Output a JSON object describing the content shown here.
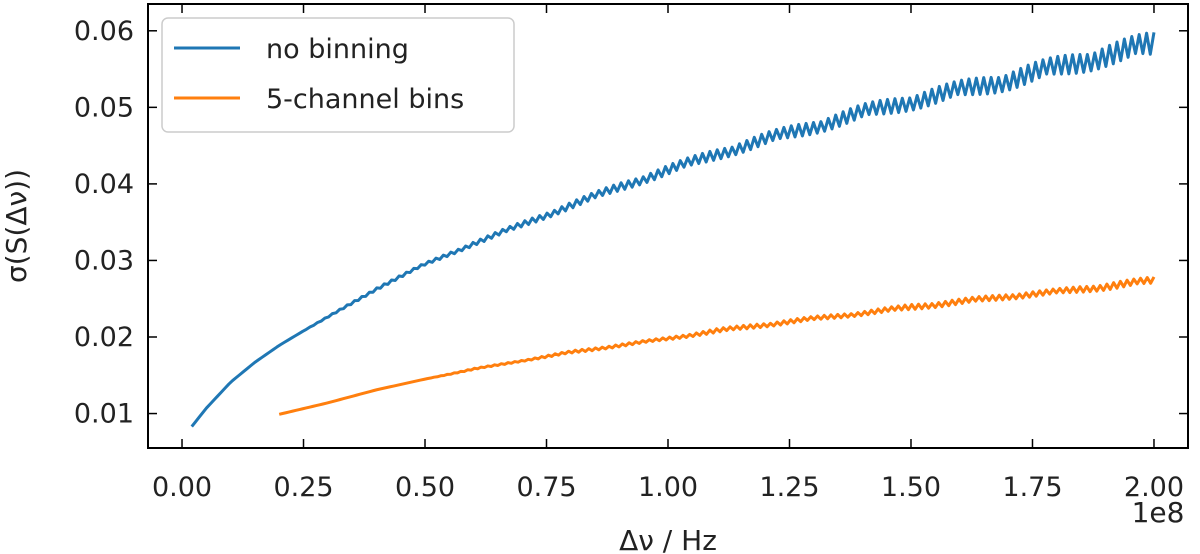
{
  "chart_data": {
    "type": "line",
    "title": "",
    "xlabel": "Δν / Hz",
    "ylabel": "σ(S(Δν))",
    "x_offset_label": "1e8",
    "xlim": [
      -0.07,
      2.07
    ],
    "ylim": [
      0.0055,
      0.0635
    ],
    "xticks": [
      0.0,
      0.25,
      0.5,
      0.75,
      1.0,
      1.25,
      1.5,
      1.75,
      2.0
    ],
    "xtick_labels": [
      "0.00",
      "0.25",
      "0.50",
      "0.75",
      "1.00",
      "1.25",
      "1.50",
      "1.75",
      "2.00"
    ],
    "yticks": [
      0.01,
      0.02,
      0.03,
      0.04,
      0.05,
      0.06
    ],
    "ytick_labels": [
      "0.01",
      "0.02",
      "0.03",
      "0.04",
      "0.05",
      "0.06"
    ],
    "grid": false,
    "legend_position": "top-left",
    "series": [
      {
        "name": "no binning",
        "color": "#1f77b4",
        "x": [
          0.02,
          0.05,
          0.1,
          0.15,
          0.2,
          0.25,
          0.3,
          0.4,
          0.5,
          0.6,
          0.7,
          0.8,
          0.9,
          1.0,
          1.1,
          1.2,
          1.3,
          1.4,
          1.5,
          1.6,
          1.7,
          1.8,
          1.9,
          2.0
        ],
        "y": [
          0.0083,
          0.0107,
          0.0141,
          0.0167,
          0.0189,
          0.0208,
          0.0226,
          0.0263,
          0.0295,
          0.0322,
          0.0347,
          0.0372,
          0.0396,
          0.0418,
          0.0439,
          0.0458,
          0.0475,
          0.0493,
          0.0508,
          0.0522,
          0.0536,
          0.0552,
          0.0568,
          0.0582
        ],
        "noise_band": [
          0.0,
          0.0,
          0.0,
          0.0,
          0.0,
          0.0,
          0.0001,
          0.0002,
          0.0002,
          0.0003,
          0.0004,
          0.0005,
          0.0006,
          0.0007,
          0.0008,
          0.0009,
          0.001,
          0.0011,
          0.0012,
          0.0013,
          0.0014,
          0.0015,
          0.0016,
          0.0018
        ]
      },
      {
        "name": "5-channel bins",
        "color": "#ff7f0e",
        "x": [
          0.2,
          0.3,
          0.4,
          0.5,
          0.6,
          0.7,
          0.8,
          0.9,
          1.0,
          1.1,
          1.2,
          1.3,
          1.4,
          1.5,
          1.6,
          1.7,
          1.8,
          1.9,
          2.0
        ],
        "y": [
          0.0099,
          0.0114,
          0.0131,
          0.0145,
          0.0158,
          0.0169,
          0.018,
          0.0189,
          0.0198,
          0.0208,
          0.0216,
          0.0224,
          0.0231,
          0.0239,
          0.0246,
          0.0253,
          0.0259,
          0.0266,
          0.0274
        ],
        "noise_band": [
          0.0,
          0.0,
          0.0,
          0.0,
          0.0001,
          0.0001,
          0.0002,
          0.0002,
          0.0002,
          0.0003,
          0.0003,
          0.0003,
          0.0003,
          0.0004,
          0.0004,
          0.0004,
          0.0004,
          0.0005,
          0.0005
        ]
      }
    ]
  }
}
